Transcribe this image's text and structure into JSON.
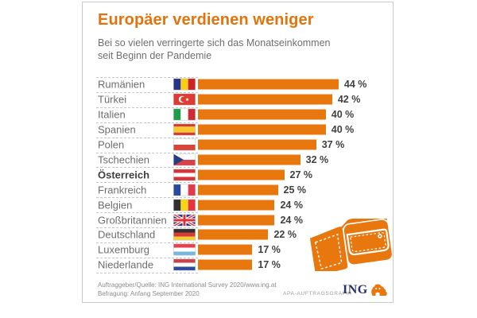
{
  "chart_data": {
    "type": "bar",
    "orientation": "horizontal",
    "title": "Europäer verdienen weniger",
    "subtitle": "Bei so vielen verringerte sich das Monatseinkommen seit Beginn der Pandemie",
    "subtitle_lines": [
      "Bei so vielen verringerte sich das Monatseinkommen",
      "seit Beginn der Pandemie"
    ],
    "unit": "%",
    "xlim": [
      0,
      47
    ],
    "grid": false,
    "legend": false,
    "bar_color": "#e8770e",
    "highlight_category": "Österreich",
    "categories": [
      "Rumänien",
      "Türkei",
      "Italien",
      "Spanien",
      "Polen",
      "Tschechien",
      "Österreich",
      "Frankreich",
      "Belgien",
      "Großbritannien",
      "Deutschland",
      "Luxemburg",
      "Niederlande"
    ],
    "values": [
      44,
      42,
      40,
      40,
      37,
      32,
      27,
      25,
      24,
      24,
      22,
      17,
      17
    ],
    "value_labels": [
      "44 %",
      "42 %",
      "40 %",
      "40 %",
      "37 %",
      "32 %",
      "27 %",
      "25 %",
      "24 %",
      "24 %",
      "22 %",
      "17 %",
      "17 %"
    ],
    "flags": [
      "romania",
      "turkey",
      "italy",
      "spain",
      "poland",
      "czechia",
      "austria",
      "france",
      "belgium",
      "uk",
      "germany",
      "luxembourg",
      "netherlands"
    ]
  },
  "footer": {
    "source_line1": "Auftraggeber/Quelle: ING International Survey 2020/www.ing.at",
    "source_line2": "Befragung: Anfang September 2020",
    "apa_label": "APA-AUFTRAGSGRAFIK",
    "brand": "ING"
  },
  "colors": {
    "accent_orange": "#e8770e",
    "title_orange": "#e2740e",
    "label_gray": "#6e6e70",
    "value_dark": "#414141",
    "brand_navy": "#28316b",
    "separator_gray": "#c6c6c6"
  }
}
